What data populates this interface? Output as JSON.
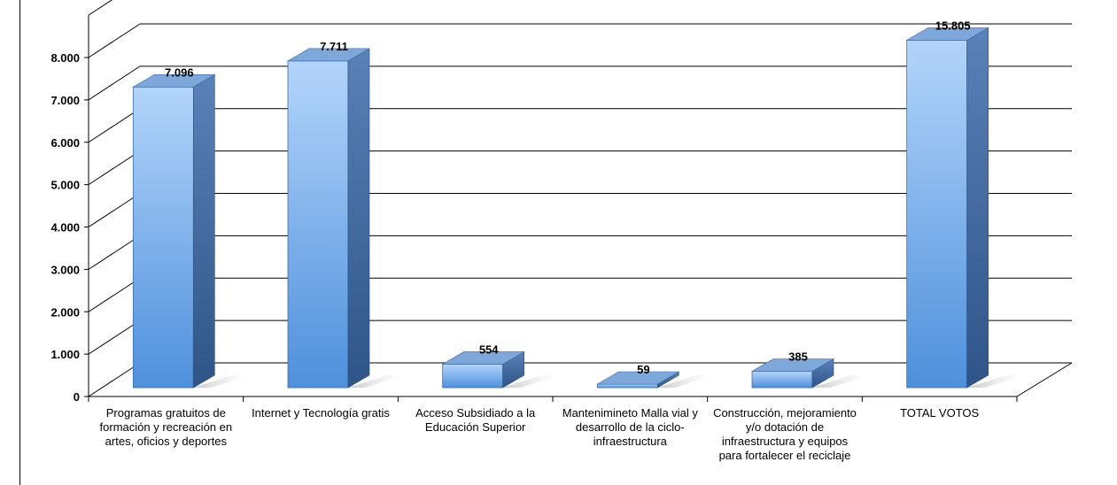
{
  "chart_data": {
    "type": "bar",
    "title": "",
    "xlabel": "",
    "ylabel": "",
    "ylim": [
      0,
      8000
    ],
    "yticks": [
      0,
      1000,
      2000,
      3000,
      4000,
      5000,
      6000,
      7000,
      8000
    ],
    "ytick_labels": [
      "0",
      "1.000",
      "2.000",
      "3.000",
      "4.000",
      "5.000",
      "6.000",
      "7.000",
      "8.000"
    ],
    "grid": true,
    "legend": "none",
    "style": "3d-column",
    "categories": [
      "Programas gratuitos de formación y recreación en artes, oficios y deportes",
      "Internet y Tecnología gratis",
      "Acceso Subsidiado a la Educación Superior",
      "Mantenimineto Malla vial y desarrollo de la ciclo-infraestructura",
      "Construcción, mejoramiento y/o dotación de infraestructura y equipos para fortalecer el reciclaje",
      "TOTAL VOTOS"
    ],
    "values": [
      7096,
      7711,
      554,
      59,
      385,
      15805
    ],
    "data_labels": [
      "7.096",
      "7.711",
      "554",
      "59",
      "385",
      "15.805"
    ],
    "colors": {
      "bar_light": "#a9cdf7",
      "bar_dark": "#4f8fd6",
      "side": "#3d6aa6",
      "top": "#7ea7da"
    }
  }
}
